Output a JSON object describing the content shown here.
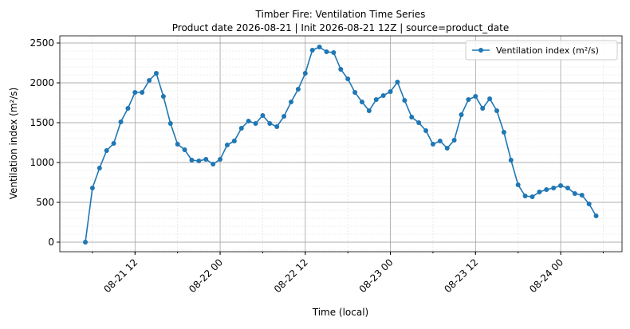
{
  "chart_data": {
    "type": "line",
    "title": "Timber Fire: Ventilation Time Series",
    "subtitle": "Product date 2026-08-21 | Init 2026-08-21 12Z | source=product_date",
    "x_label": "Time (local)",
    "y_label": "Ventilation index (m²/s)",
    "x": [
      "08-21 05",
      "08-21 06",
      "08-21 07",
      "08-21 08",
      "08-21 09",
      "08-21 10",
      "08-21 11",
      "08-21 12",
      "08-21 13",
      "08-21 14",
      "08-21 15",
      "08-21 16",
      "08-21 17",
      "08-21 18",
      "08-21 19",
      "08-21 20",
      "08-21 21",
      "08-21 22",
      "08-21 23",
      "08-22 00",
      "08-22 01",
      "08-22 02",
      "08-22 03",
      "08-22 04",
      "08-22 05",
      "08-22 06",
      "08-22 07",
      "08-22 08",
      "08-22 09",
      "08-22 10",
      "08-22 11",
      "08-22 12",
      "08-22 13",
      "08-22 14",
      "08-22 15",
      "08-22 16",
      "08-22 17",
      "08-22 18",
      "08-22 19",
      "08-22 20",
      "08-22 21",
      "08-22 22",
      "08-22 23",
      "08-23 00",
      "08-23 01",
      "08-23 02",
      "08-23 03",
      "08-23 04",
      "08-23 05",
      "08-23 06",
      "08-23 07",
      "08-23 08",
      "08-23 09",
      "08-23 10",
      "08-23 11",
      "08-23 12",
      "08-23 13",
      "08-23 14",
      "08-23 15",
      "08-23 16",
      "08-23 17",
      "08-23 18",
      "08-23 19",
      "08-23 20",
      "08-23 21",
      "08-23 22",
      "08-23 23",
      "08-24 00",
      "08-24 01",
      "08-24 02",
      "08-24 03",
      "08-24 04",
      "08-24 05"
    ],
    "series": [
      {
        "name": "Ventilation index (m²/s)",
        "color": "#1f77b4",
        "values": [
          0,
          680,
          930,
          1150,
          1240,
          1510,
          1680,
          1880,
          1880,
          2030,
          2120,
          1830,
          1490,
          1230,
          1160,
          1030,
          1020,
          1040,
          980,
          1040,
          1220,
          1270,
          1430,
          1520,
          1490,
          1590,
          1490,
          1450,
          1580,
          1760,
          1920,
          2120,
          2410,
          2450,
          2390,
          2380,
          2170,
          2050,
          1880,
          1760,
          1650,
          1790,
          1840,
          1890,
          2010,
          1780,
          1570,
          1500,
          1400,
          1230,
          1270,
          1180,
          1280,
          1600,
          1790,
          1830,
          1680,
          1800,
          1650,
          1380,
          1030,
          720,
          580,
          570,
          630,
          660,
          680,
          710,
          680,
          610,
          590,
          480,
          330
        ]
      }
    ],
    "xlim": [
      "08-21 01:24",
      "08-24 08:39"
    ],
    "xticks": [
      "08-21 12",
      "08-22 00",
      "08-22 12",
      "08-23 00",
      "08-23 12",
      "08-24 00"
    ],
    "ylim": [
      -120,
      2590
    ],
    "yticks": [
      0,
      500,
      1000,
      1500,
      2000,
      2500
    ],
    "grid": true,
    "minor_grid": true,
    "legend": "upper right"
  }
}
